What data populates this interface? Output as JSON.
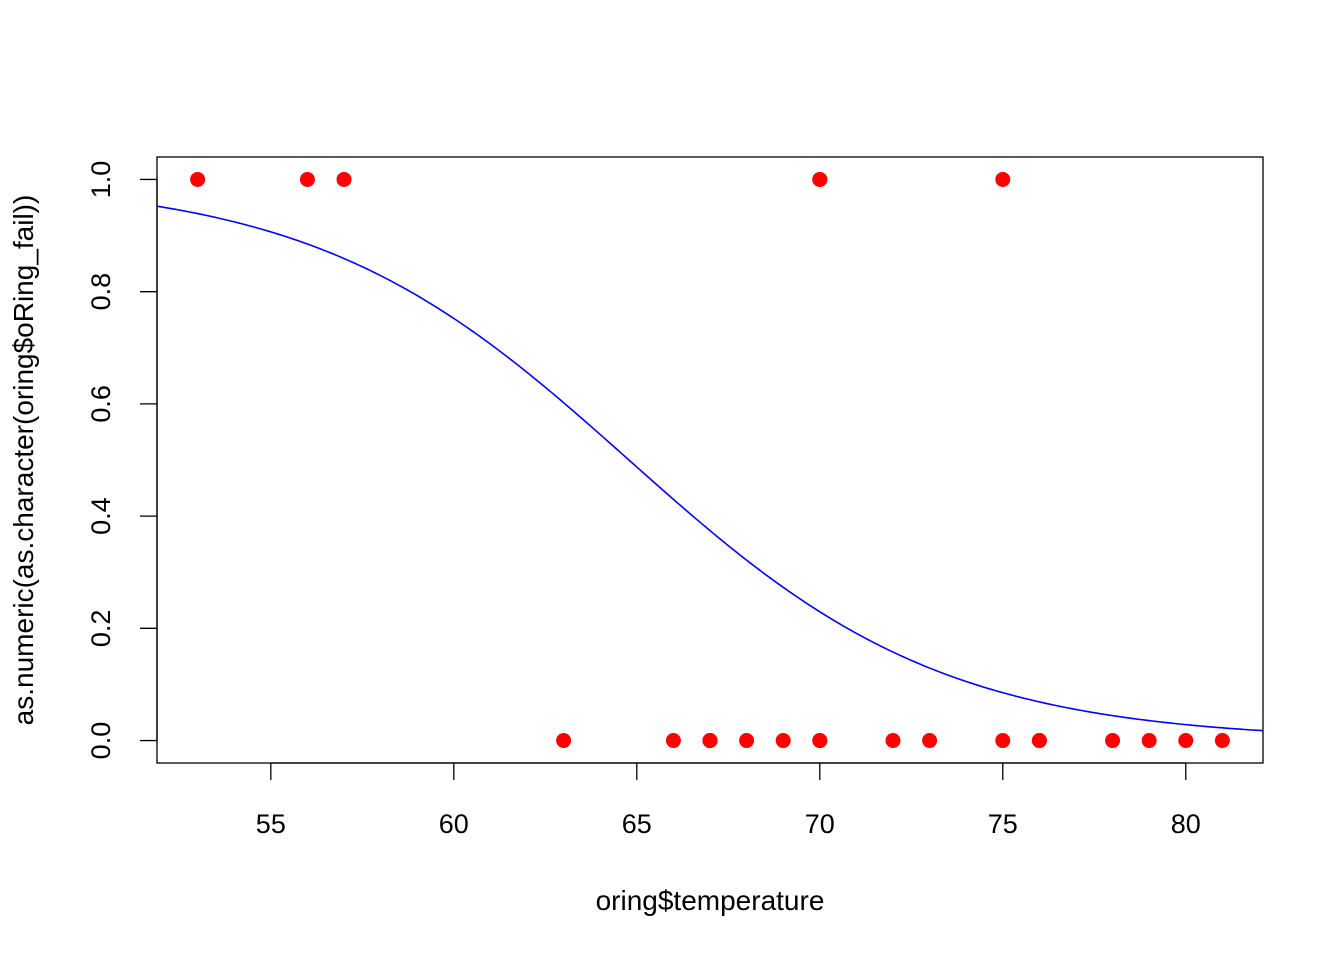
{
  "chart_data": {
    "type": "scatter",
    "title": "",
    "xlabel": "oring$temperature",
    "ylabel": "as.numeric(as.character(oring$oRing_fail))",
    "xlim": [
      51.89,
      82.11
    ],
    "ylim": [
      -0.04,
      1.04
    ],
    "x_ticks": [
      "55",
      "60",
      "65",
      "70",
      "75",
      "80"
    ],
    "y_ticks": [
      "0.0",
      "0.2",
      "0.4",
      "0.6",
      "0.8",
      "1.0"
    ],
    "grid": false,
    "legend": "none",
    "colors": {
      "points": "#ff0000",
      "curve": "#0000ff",
      "axes": "#000000"
    },
    "series": [
      {
        "type": "scatter",
        "points": [
          {
            "x": 53,
            "y": 1
          },
          {
            "x": 56,
            "y": 1
          },
          {
            "x": 57,
            "y": 1
          },
          {
            "x": 63,
            "y": 0
          },
          {
            "x": 66,
            "y": 0
          },
          {
            "x": 67,
            "y": 0
          },
          {
            "x": 67,
            "y": 0
          },
          {
            "x": 67,
            "y": 0
          },
          {
            "x": 68,
            "y": 0
          },
          {
            "x": 69,
            "y": 0
          },
          {
            "x": 70,
            "y": 0
          },
          {
            "x": 70,
            "y": 1
          },
          {
            "x": 70,
            "y": 0
          },
          {
            "x": 70,
            "y": 1
          },
          {
            "x": 72,
            "y": 0
          },
          {
            "x": 73,
            "y": 0
          },
          {
            "x": 75,
            "y": 0
          },
          {
            "x": 75,
            "y": 1
          },
          {
            "x": 76,
            "y": 0
          },
          {
            "x": 76,
            "y": 0
          },
          {
            "x": 78,
            "y": 0
          },
          {
            "x": 79,
            "y": 0
          },
          {
            "x": 80,
            "y": 0
          },
          {
            "x": 81,
            "y": 0
          }
        ]
      },
      {
        "type": "line",
        "model": "logistic",
        "intercept": 15.0429,
        "slope": -0.2322
      }
    ]
  }
}
